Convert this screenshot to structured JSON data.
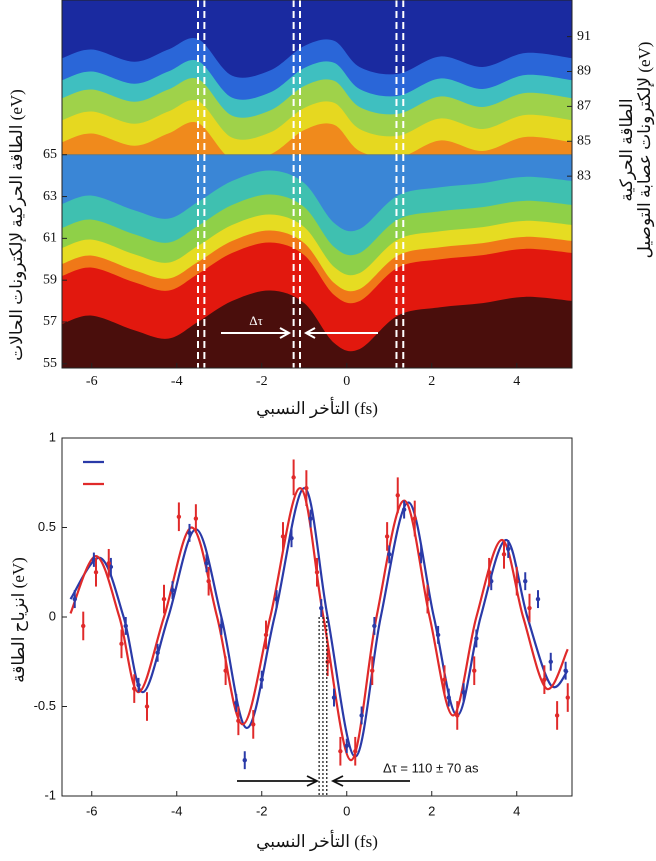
{
  "chart_data": [
    {
      "type": "heatmap",
      "x_label": "التأخر النسبي (fs)",
      "y_label": "الطاقة الحركية لإلكترونات الحالات (eV)",
      "y2_label": [
        "الطاقة الحركية",
        "لإلكترونات عصابة التوصيل (eV)"
      ],
      "xlim": [
        -6.7,
        5.3
      ],
      "xticks": [
        -6,
        -4,
        -2,
        0,
        2,
        4
      ],
      "ylim": [
        54.8,
        72.4
      ],
      "yticks": [
        55,
        57,
        59,
        61,
        63,
        65
      ],
      "y2lim": [
        72,
        93.1
      ],
      "y2ticks": [
        83,
        85,
        87,
        89,
        91
      ],
      "x": [
        -6.7,
        -6,
        -5,
        -4.2,
        -3.5,
        -2.7,
        -1.8,
        -1,
        -0.3,
        0.3,
        1.2,
        2.2,
        3.2,
        4.2,
        5.3
      ],
      "lower_edge": [
        59.2,
        59.6,
        58.9,
        58.5,
        59.3,
        60.3,
        60.8,
        60.2,
        58.3,
        58.0,
        59.6,
        60.0,
        60.2,
        60.5,
        60.3
      ],
      "upper_edge": [
        88.5,
        89.0,
        88.3,
        89.0,
        89.6,
        87.5,
        87.8,
        89.2,
        89.5,
        88.0,
        87.6,
        88.6,
        88.0,
        88.8,
        88.5
      ],
      "dashed_lines": [
        -3.5,
        -3.35,
        -1.25,
        -1.1,
        1.17,
        1.33
      ],
      "annotation": "Δτ"
    },
    {
      "type": "line",
      "x_label": "التأخر النسبي (fs)",
      "y_label": "انزياح الطاقة (eV)",
      "xlim": [
        -6.7,
        5.3
      ],
      "xticks": [
        -6,
        -4,
        -2,
        0,
        2,
        4
      ],
      "ylim": [
        -1,
        1
      ],
      "yticks": [
        -1,
        -0.5,
        0,
        0.5,
        1
      ],
      "dotted_lines": [
        -0.65,
        -0.56,
        -0.47
      ],
      "annotation": "Δτ = 110 ± 70 as",
      "series": [
        {
          "color": "#2a3aa8",
          "fit_x": [
            -6.5,
            -5.8,
            -5.25,
            -4.8,
            -4.2,
            -3.55,
            -2.95,
            -2.35,
            -1.7,
            -1.0,
            -0.45,
            0.2,
            0.8,
            1.45,
            2.05,
            2.6,
            3.15,
            3.75,
            4.25,
            4.8,
            5.2
          ],
          "fit_values": [
            0.1,
            0.33,
            0,
            -0.42,
            0,
            0.49,
            0,
            -0.62,
            0,
            0.72,
            0,
            -0.78,
            0,
            0.64,
            0,
            -0.55,
            0,
            0.43,
            0,
            -0.38,
            -0.3
          ],
          "x": [
            -6.4,
            -5.95,
            -5.55,
            -5.2,
            -4.9,
            -4.45,
            -4.1,
            -3.7,
            -3.3,
            -2.95,
            -2.6,
            -2.4,
            -2.0,
            -1.65,
            -1.3,
            -0.85,
            -0.6,
            -0.3,
            0.0,
            0.35,
            0.65,
            1.0,
            1.35,
            1.75,
            2.15,
            2.4,
            2.75,
            3.05,
            3.4,
            3.8,
            4.2,
            4.5,
            4.8,
            5.15
          ],
          "values": [
            0.1,
            0.32,
            0.28,
            -0.05,
            -0.38,
            -0.2,
            0.15,
            0.47,
            0.3,
            -0.05,
            -0.48,
            -0.8,
            -0.35,
            0.1,
            0.44,
            0.55,
            0.05,
            -0.45,
            -0.72,
            -0.55,
            -0.05,
            0.35,
            0.6,
            0.35,
            -0.1,
            -0.45,
            -0.42,
            -0.12,
            0.2,
            0.38,
            0.2,
            0.1,
            -0.25,
            -0.3
          ],
          "errors": [
            0.05,
            0.04,
            0.05,
            0.05,
            0.04,
            0.05,
            0.05,
            0.05,
            0.05,
            0.05,
            0.05,
            0.05,
            0.05,
            0.05,
            0.05,
            0.05,
            0.05,
            0.05,
            0.04,
            0.05,
            0.05,
            0.05,
            0.05,
            0.05,
            0.05,
            0.05,
            0.05,
            0.05,
            0.05,
            0.05,
            0.05,
            0.05,
            0.05,
            0.05
          ]
        },
        {
          "color": "#e02a2a",
          "fit_x": [
            -6.5,
            -5.9,
            -5.35,
            -4.9,
            -4.3,
            -3.65,
            -3.05,
            -2.45,
            -1.8,
            -1.1,
            -0.55,
            0.1,
            0.7,
            1.35,
            1.95,
            2.5,
            3.05,
            3.65,
            4.15,
            4.7,
            5.2
          ],
          "fit_values": [
            0.02,
            0.34,
            0,
            -0.42,
            0,
            0.5,
            0,
            -0.6,
            0,
            0.72,
            0,
            -0.8,
            0,
            0.65,
            0,
            -0.55,
            0,
            0.43,
            0,
            -0.4,
            -0.18
          ],
          "x": [
            -6.2,
            -5.9,
            -5.6,
            -5.3,
            -5.0,
            -4.7,
            -4.3,
            -3.95,
            -3.55,
            -3.25,
            -2.85,
            -2.55,
            -2.2,
            -1.9,
            -1.5,
            -1.25,
            -0.95,
            -0.7,
            -0.45,
            -0.15,
            0.2,
            0.6,
            0.95,
            1.2,
            1.6,
            1.9,
            2.3,
            2.6,
            3.0,
            3.35,
            3.7,
            4.0,
            4.3,
            4.65,
            4.95,
            5.2
          ],
          "values": [
            -0.05,
            0.25,
            0.3,
            -0.15,
            -0.4,
            -0.5,
            0.1,
            0.56,
            0.55,
            0.2,
            -0.3,
            -0.58,
            -0.6,
            -0.1,
            0.45,
            0.78,
            0.72,
            0.25,
            -0.25,
            -0.75,
            -0.75,
            -0.3,
            0.45,
            0.68,
            0.55,
            0.1,
            -0.35,
            -0.55,
            -0.3,
            0.25,
            0.35,
            0.2,
            0.05,
            -0.35,
            -0.55,
            -0.45
          ],
          "errors": [
            0.08,
            0.08,
            0.08,
            0.08,
            0.08,
            0.08,
            0.08,
            0.08,
            0.08,
            0.08,
            0.08,
            0.08,
            0.08,
            0.08,
            0.08,
            0.1,
            0.1,
            0.08,
            0.08,
            0.08,
            0.08,
            0.08,
            0.08,
            0.1,
            0.1,
            0.08,
            0.08,
            0.08,
            0.08,
            0.08,
            0.08,
            0.08,
            0.08,
            0.08,
            0.08,
            0.08
          ]
        }
      ]
    }
  ]
}
